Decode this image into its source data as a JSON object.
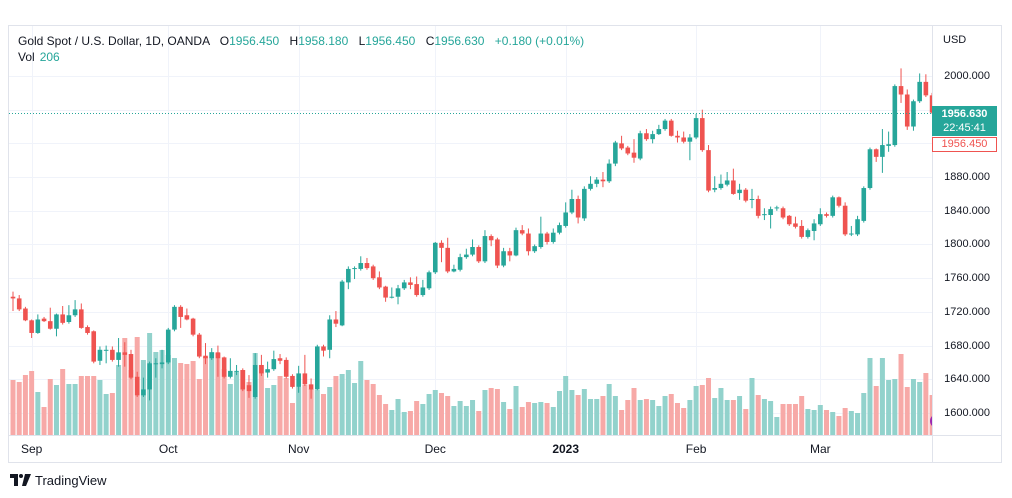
{
  "header": {
    "symbol_title": "Gold Spot / U.S. Dollar, 1D, OANDA",
    "ohlc": [
      {
        "label": "O",
        "value": "1956.450"
      },
      {
        "label": "H",
        "value": "1958.180"
      },
      {
        "label": "L",
        "value": "1956.450"
      },
      {
        "label": "C",
        "value": "1956.630"
      }
    ],
    "change": "+0.180 (+0.01%)",
    "volume_label": "Vol",
    "volume_value": "206"
  },
  "price_axis": {
    "currency": "USD",
    "gridlines": [
      1600,
      1640,
      1680,
      1720,
      1760,
      1800,
      1840,
      1880,
      1920,
      1960,
      2000
    ],
    "labels": [
      {
        "value": 2000,
        "label": "2000.000"
      },
      {
        "value": 1880,
        "label": "1880.000"
      },
      {
        "value": 1840,
        "label": "1840.000"
      },
      {
        "value": 1800,
        "label": "1800.000"
      },
      {
        "value": 1760,
        "label": "1760.000"
      },
      {
        "value": 1720,
        "label": "1720.000"
      },
      {
        "value": 1680,
        "label": "1680.000"
      },
      {
        "value": 1640,
        "label": "1640.000"
      },
      {
        "value": 1600,
        "label": "1600.000"
      }
    ]
  },
  "current_price": {
    "value": 1956.63,
    "label": "1956.630",
    "countdown": "22:45:41"
  },
  "open_price": {
    "value": 1956.45,
    "label": "1956.450"
  },
  "time_axis": {
    "ticks": [
      {
        "label": "Sep",
        "bar_index": 3,
        "is_year": false
      },
      {
        "label": "Oct",
        "bar_index": 25,
        "is_year": false
      },
      {
        "label": "Nov",
        "bar_index": 46,
        "is_year": false
      },
      {
        "label": "Dec",
        "bar_index": 68,
        "is_year": false
      },
      {
        "label": "2023",
        "bar_index": 89,
        "is_year": true
      },
      {
        "label": "Feb",
        "bar_index": 110,
        "is_year": false
      },
      {
        "label": "Mar",
        "bar_index": 130,
        "is_year": false
      }
    ]
  },
  "branding": {
    "logo_text": "TradingView"
  },
  "colors": {
    "up": "#26a69a",
    "down": "#ef5350",
    "up_volume": "#92d2cc",
    "down_volume": "#f7a9a7",
    "text": "#131722",
    "grid": "#f0f3fa",
    "border": "#e0e3eb",
    "event_marker": "#9c27b0"
  },
  "chart_data": {
    "type": "bar",
    "variant": "candlestick",
    "title": "Gold Spot / U.S. Dollar, 1D, OANDA",
    "xlabel": "",
    "ylabel": "USD",
    "x_tick_labels": [
      "Sep",
      "Oct",
      "Nov",
      "Dec",
      "2023",
      "Feb",
      "Mar"
    ],
    "ylim": [
      1573.9,
      2059.3
    ],
    "grid": true,
    "legend": "top-left",
    "candle_fields": [
      "open",
      "high",
      "low",
      "close"
    ],
    "candles": [
      [
        1738,
        1744,
        1721,
        1736
      ],
      [
        1736,
        1740,
        1721,
        1723
      ],
      [
        1724,
        1726,
        1709,
        1710
      ],
      [
        1710,
        1711,
        1689,
        1695
      ],
      [
        1695,
        1717,
        1694,
        1711
      ],
      [
        1712,
        1714,
        1708,
        1709
      ],
      [
        1709,
        1725,
        1699,
        1700
      ],
      [
        1700,
        1718,
        1691,
        1717
      ],
      [
        1717,
        1727,
        1705,
        1707
      ],
      [
        1708,
        1728,
        1706,
        1716
      ],
      [
        1716,
        1734,
        1714,
        1723
      ],
      [
        1723,
        1730,
        1700,
        1701
      ],
      [
        1702,
        1704,
        1693,
        1695
      ],
      [
        1697,
        1698,
        1659,
        1661
      ],
      [
        1662,
        1679,
        1657,
        1675
      ],
      [
        1674,
        1680,
        1659,
        1675
      ],
      [
        1675,
        1679,
        1661,
        1663
      ],
      [
        1663,
        1689,
        1655,
        1672
      ],
      [
        1672,
        1684,
        1655,
        1669
      ],
      [
        1670,
        1675,
        1640,
        1642
      ],
      [
        1643,
        1649,
        1619,
        1621
      ],
      [
        1621,
        1642,
        1619,
        1628
      ],
      [
        1628,
        1661,
        1615,
        1659
      ],
      [
        1658,
        1665,
        1642,
        1659
      ],
      [
        1658,
        1675,
        1653,
        1660
      ],
      [
        1660,
        1701,
        1658,
        1699
      ],
      [
        1699,
        1728,
        1697,
        1726
      ],
      [
        1726,
        1728,
        1701,
        1714
      ],
      [
        1716,
        1724,
        1710,
        1711
      ],
      [
        1712,
        1713,
        1691,
        1693
      ],
      [
        1693,
        1695,
        1665,
        1667
      ],
      [
        1668,
        1683,
        1658,
        1665
      ],
      [
        1665,
        1677,
        1663,
        1672
      ],
      [
        1672,
        1680,
        1643,
        1665
      ],
      [
        1666,
        1667,
        1641,
        1643
      ],
      [
        1643,
        1665,
        1641,
        1650
      ],
      [
        1649,
        1657,
        1645,
        1650
      ],
      [
        1651,
        1653,
        1626,
        1628
      ],
      [
        1633,
        1645,
        1618,
        1626
      ],
      [
        1619,
        1671,
        1617,
        1657
      ],
      [
        1657,
        1669,
        1644,
        1647
      ],
      [
        1648,
        1661,
        1642,
        1652
      ],
      [
        1652,
        1674,
        1650,
        1664
      ],
      [
        1665,
        1670,
        1658,
        1662
      ],
      [
        1663,
        1666,
        1641,
        1643
      ],
      [
        1644,
        1646,
        1629,
        1631
      ],
      [
        1631,
        1656,
        1624,
        1647
      ],
      [
        1647,
        1669,
        1632,
        1634
      ],
      [
        1634,
        1641,
        1617,
        1628
      ],
      [
        1628,
        1681,
        1627,
        1679
      ],
      [
        1679,
        1681,
        1667,
        1674
      ],
      [
        1675,
        1716,
        1665,
        1711
      ],
      [
        1711,
        1721,
        1702,
        1706
      ],
      [
        1704,
        1758,
        1703,
        1756
      ],
      [
        1755,
        1774,
        1747,
        1771
      ],
      [
        1771,
        1774,
        1759,
        1772
      ],
      [
        1771,
        1786,
        1769,
        1778
      ],
      [
        1778,
        1784,
        1770,
        1772
      ],
      [
        1774,
        1776,
        1758,
        1760
      ],
      [
        1761,
        1768,
        1747,
        1749
      ],
      [
        1750,
        1751,
        1732,
        1737
      ],
      [
        1737,
        1749,
        1736,
        1738
      ],
      [
        1738,
        1752,
        1729,
        1748
      ],
      [
        1748,
        1758,
        1746,
        1755
      ],
      [
        1755,
        1761,
        1747,
        1752
      ],
      [
        1753,
        1762,
        1738,
        1740
      ],
      [
        1740,
        1758,
        1738,
        1749
      ],
      [
        1748,
        1769,
        1746,
        1767
      ],
      [
        1767,
        1803,
        1765,
        1802
      ],
      [
        1802,
        1805,
        1779,
        1796
      ],
      [
        1796,
        1808,
        1766,
        1768
      ],
      [
        1768,
        1776,
        1767,
        1771
      ],
      [
        1770,
        1789,
        1768,
        1785
      ],
      [
        1785,
        1795,
        1783,
        1788
      ],
      [
        1788,
        1806,
        1786,
        1797
      ],
      [
        1797,
        1799,
        1778,
        1780
      ],
      [
        1780,
        1817,
        1778,
        1810
      ],
      [
        1810,
        1812,
        1798,
        1805
      ],
      [
        1806,
        1808,
        1772,
        1775
      ],
      [
        1775,
        1796,
        1773,
        1792
      ],
      [
        1792,
        1796,
        1780,
        1787
      ],
      [
        1787,
        1820,
        1786,
        1817
      ],
      [
        1817,
        1823,
        1811,
        1813
      ],
      [
        1813,
        1819,
        1787,
        1792
      ],
      [
        1792,
        1800,
        1790,
        1798
      ],
      [
        1797,
        1833,
        1795,
        1813
      ],
      [
        1813,
        1815,
        1800,
        1803
      ],
      [
        1803,
        1819,
        1801,
        1814
      ],
      [
        1814,
        1826,
        1812,
        1823
      ],
      [
        1822,
        1850,
        1820,
        1838
      ],
      [
        1838,
        1865,
        1836,
        1854
      ],
      [
        1854,
        1858,
        1825,
        1832
      ],
      [
        1831,
        1869,
        1828,
        1866
      ],
      [
        1866,
        1881,
        1864,
        1872
      ],
      [
        1872,
        1880,
        1868,
        1877
      ],
      [
        1877,
        1886,
        1868,
        1875
      ],
      [
        1875,
        1901,
        1873,
        1896
      ],
      [
        1896,
        1923,
        1893,
        1921
      ],
      [
        1920,
        1929,
        1912,
        1914
      ],
      [
        1915,
        1917,
        1906,
        1908
      ],
      [
        1909,
        1925,
        1897,
        1903
      ],
      [
        1902,
        1935,
        1900,
        1932
      ],
      [
        1932,
        1937,
        1923,
        1925
      ],
      [
        1925,
        1935,
        1920,
        1931
      ],
      [
        1931,
        1942,
        1930,
        1937
      ],
      [
        1937,
        1949,
        1935,
        1947
      ],
      [
        1947,
        1949,
        1928,
        1929
      ],
      [
        1929,
        1935,
        1921,
        1927
      ],
      [
        1927,
        1934,
        1920,
        1922
      ],
      [
        1922,
        1931,
        1900,
        1927
      ],
      [
        1927,
        1955,
        1925,
        1950
      ],
      [
        1950,
        1960,
        1910,
        1912
      ],
      [
        1912,
        1918,
        1862,
        1864
      ],
      [
        1865,
        1881,
        1862,
        1867
      ],
      [
        1867,
        1883,
        1865,
        1872
      ],
      [
        1871,
        1886,
        1869,
        1876
      ],
      [
        1876,
        1890,
        1859,
        1860
      ],
      [
        1861,
        1872,
        1853,
        1865
      ],
      [
        1865,
        1867,
        1850,
        1852
      ],
      [
        1853,
        1866,
        1843,
        1854
      ],
      [
        1854,
        1858,
        1831,
        1834
      ],
      [
        1835,
        1843,
        1829,
        1836
      ],
      [
        1835,
        1845,
        1819,
        1842
      ],
      [
        1843,
        1846,
        1840,
        1844
      ],
      [
        1843,
        1845,
        1830,
        1832
      ],
      [
        1834,
        1835,
        1822,
        1824
      ],
      [
        1825,
        1833,
        1819,
        1821
      ],
      [
        1822,
        1829,
        1807,
        1809
      ],
      [
        1809,
        1819,
        1807,
        1817
      ],
      [
        1816,
        1830,
        1805,
        1825
      ],
      [
        1824,
        1843,
        1822,
        1836
      ],
      [
        1836,
        1838,
        1832,
        1834
      ],
      [
        1834,
        1858,
        1832,
        1856
      ],
      [
        1856,
        1857,
        1844,
        1846
      ],
      [
        1846,
        1850,
        1810,
        1812
      ],
      [
        1812,
        1822,
        1810,
        1813
      ],
      [
        1812,
        1834,
        1810,
        1830
      ],
      [
        1828,
        1869,
        1826,
        1867
      ],
      [
        1867,
        1915,
        1865,
        1913
      ],
      [
        1913,
        1914,
        1898,
        1904
      ],
      [
        1904,
        1937,
        1885,
        1918
      ],
      [
        1917,
        1934,
        1910,
        1919
      ],
      [
        1918,
        1990,
        1916,
        1988
      ],
      [
        1988,
        2009,
        1968,
        1978
      ],
      [
        1978,
        1984,
        1936,
        1940
      ],
      [
        1940,
        1972,
        1935,
        1970
      ],
      [
        1970,
        2003,
        1968,
        1993
      ],
      [
        1993,
        2002,
        1975,
        1977
      ],
      [
        1977,
        1980,
        1955,
        1956.45
      ]
    ],
    "volume_units": "relative (estimated)",
    "volume_max": 125,
    "volume": [
      55,
      53,
      60,
      64,
      43,
      28,
      56,
      50,
      66,
      51,
      51,
      59,
      59,
      59,
      55,
      41,
      42,
      70,
      97,
      65,
      98,
      75,
      102,
      83,
      85,
      80,
      77,
      72,
      71,
      74,
      56,
      78,
      83,
      82,
      66,
      51,
      63,
      65,
      53,
      82,
      70,
      47,
      50,
      59,
      57,
      32,
      48,
      50,
      46,
      45,
      41,
      48,
      59,
      61,
      65,
      52,
      74,
      55,
      51,
      40,
      31,
      25,
      36,
      23,
      24,
      34,
      31,
      41,
      45,
      42,
      39,
      29,
      34,
      29,
      35,
      24,
      45,
      47,
      46,
      33,
      26,
      49,
      28,
      33,
      32,
      33,
      32,
      28,
      44,
      59,
      45,
      40,
      46,
      36,
      36,
      39,
      51,
      39,
      25,
      35,
      47,
      35,
      36,
      35,
      29,
      39,
      41,
      32,
      27,
      35,
      49,
      50,
      57,
      37,
      47,
      35,
      35,
      39,
      26,
      57,
      40,
      36,
      34,
      18,
      31,
      31,
      31,
      39,
      26,
      25,
      30,
      25,
      23,
      19,
      27,
      24,
      22,
      42,
      77,
      49,
      77,
      55,
      56,
      81,
      48,
      56,
      53,
      62,
      40
    ]
  }
}
